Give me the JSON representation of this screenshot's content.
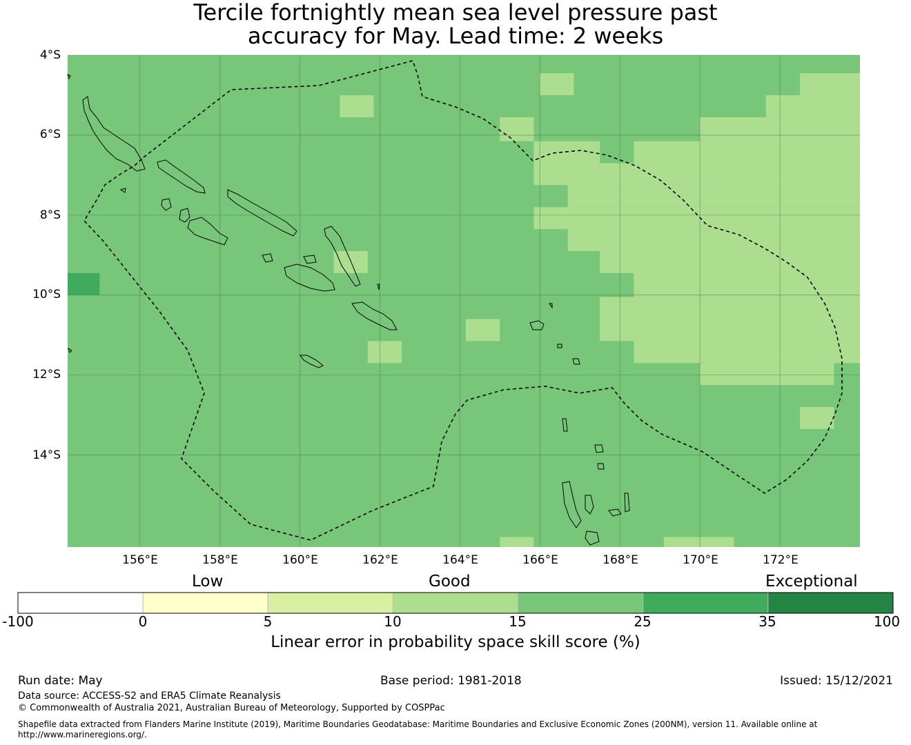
{
  "title": {
    "line1": "Tercile fortnightly mean sea level pressure past",
    "line2": "accuracy for May. Lead time: 2 weeks"
  },
  "map": {
    "lat_ticks": [
      "4°S",
      "6°S",
      "8°S",
      "10°S",
      "12°S",
      "14°S"
    ],
    "lon_ticks": [
      "156°E",
      "158°E",
      "160°E",
      "162°E",
      "164°E",
      "166°E",
      "168°E",
      "170°E",
      "172°E"
    ],
    "extent": {
      "lon": [
        154.2,
        174.0
      ],
      "lat": [
        -16.3,
        -4.0
      ]
    },
    "grid": true,
    "base_category": "15-25",
    "cells": [
      {
        "lon0": 154.2,
        "lon1": 155.0,
        "lat0": -9.45,
        "lat1": -10.0,
        "cat": "25-35"
      },
      {
        "lon0": 166.0,
        "lon1": 166.85,
        "lat0": -4.45,
        "lat1": -5.0,
        "cat": "10-15"
      },
      {
        "lon0": 161.0,
        "lon1": 161.85,
        "lat0": -5.0,
        "lat1": -5.55,
        "cat": "10-15"
      },
      {
        "lon0": 165.0,
        "lon1": 165.85,
        "lat0": -5.55,
        "lat1": -6.15,
        "cat": "10-15"
      },
      {
        "lon0": 160.85,
        "lon1": 161.7,
        "lat0": -8.9,
        "lat1": -9.45,
        "cat": "10-15"
      },
      {
        "lon0": 164.15,
        "lon1": 165.0,
        "lat0": -10.6,
        "lat1": -11.15,
        "cat": "10-15"
      },
      {
        "lon0": 161.7,
        "lon1": 162.55,
        "lat0": -11.15,
        "lat1": -11.7,
        "cat": "10-15"
      },
      {
        "lon0": 165.0,
        "lon1": 165.85,
        "lat0": -16.05,
        "lat1": -16.3,
        "cat": "10-15"
      },
      {
        "lon0": 169.1,
        "lon1": 170.85,
        "lat0": -16.05,
        "lat1": -16.3,
        "cat": "10-15"
      },
      {
        "lon0": 172.5,
        "lon1": 173.35,
        "lat0": -12.8,
        "lat1": -13.35,
        "cat": "10-15"
      },
      {
        "lon0": 172.5,
        "lon1": 174.0,
        "lat0": -4.45,
        "lat1": -5.0,
        "cat": "10-15"
      },
      {
        "lon0": 171.65,
        "lon1": 174.0,
        "lat0": -5.0,
        "lat1": -5.55,
        "cat": "10-15"
      },
      {
        "lon0": 170.0,
        "lon1": 174.0,
        "lat0": -5.55,
        "lat1": -6.15,
        "cat": "10-15"
      },
      {
        "lon0": 165.85,
        "lon1": 167.5,
        "lat0": -6.15,
        "lat1": -6.7,
        "cat": "10-15"
      },
      {
        "lon0": 168.35,
        "lon1": 174.0,
        "lat0": -6.15,
        "lat1": -6.7,
        "cat": "10-15"
      },
      {
        "lon0": 165.85,
        "lon1": 174.0,
        "lat0": -6.7,
        "lat1": -7.25,
        "cat": "10-15"
      },
      {
        "lon0": 166.7,
        "lon1": 174.0,
        "lat0": -7.25,
        "lat1": -7.8,
        "cat": "10-15"
      },
      {
        "lon0": 165.85,
        "lon1": 174.0,
        "lat0": -7.8,
        "lat1": -8.35,
        "cat": "10-15"
      },
      {
        "lon0": 166.7,
        "lon1": 174.0,
        "lat0": -8.35,
        "lat1": -8.9,
        "cat": "10-15"
      },
      {
        "lon0": 167.5,
        "lon1": 174.0,
        "lat0": -8.9,
        "lat1": -9.45,
        "cat": "10-15"
      },
      {
        "lon0": 168.35,
        "lon1": 174.0,
        "lat0": -9.45,
        "lat1": -10.05,
        "cat": "10-15"
      },
      {
        "lon0": 167.5,
        "lon1": 174.0,
        "lat0": -10.05,
        "lat1": -11.15,
        "cat": "10-15"
      },
      {
        "lon0": 168.35,
        "lon1": 174.0,
        "lat0": -11.15,
        "lat1": -11.7,
        "cat": "10-15"
      },
      {
        "lon0": 170.0,
        "lon1": 173.35,
        "lat0": -11.7,
        "lat1": -12.25,
        "cat": "10-15"
      }
    ]
  },
  "legend": {
    "categories": [
      "Low",
      "Good",
      "Exceptional"
    ],
    "colorbar": [
      {
        "from": -100,
        "to": 0,
        "color": "#ffffff"
      },
      {
        "from": 0,
        "to": 5,
        "color": "#ffffcc"
      },
      {
        "from": 5,
        "to": 10,
        "color": "#d9f0a3"
      },
      {
        "from": 10,
        "to": 15,
        "color": "#addd8e"
      },
      {
        "from": 15,
        "to": 25,
        "color": "#78c679"
      },
      {
        "from": 25,
        "to": 35,
        "color": "#41ab5d"
      },
      {
        "from": 35,
        "to": 100,
        "color": "#238443"
      }
    ],
    "ticks": [
      "-100",
      "0",
      "5",
      "10",
      "15",
      "25",
      "35",
      "100"
    ],
    "label": "Linear error in probability space skill score (%)"
  },
  "colors": {
    "15-25": "#78c679",
    "10-15": "#addd8e",
    "25-35": "#41ab5d"
  },
  "footer": {
    "run_date": "Run date: May",
    "base_period": "Base period: 1981-2018",
    "issued": "Issued: 15/12/2021",
    "data_source": "Data source: ACCESS-S2 and ERA5 Climate Reanalysis",
    "copyright": "© Commonwealth of Australia 2021, Australian Bureau of Meteorology, Supported by COSPPac",
    "shapefile_1": "Shapefile data extracted from Flanders Marine Institute (2019), Maritime Boundaries Geodatabase: Maritime Boundaries and Exclusive Economic Zones (200NM), version 11. Available online at",
    "shapefile_2": "http://www.marineregions.org/."
  }
}
